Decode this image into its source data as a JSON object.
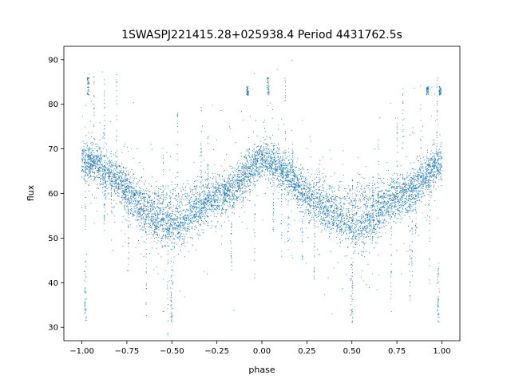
{
  "chart_data": {
    "type": "scatter",
    "title": "1SWASPJ221415.28+025938.4 Period 4431762.5s",
    "xlabel": "phase",
    "ylabel": "flux",
    "xlim": [
      -1.1,
      1.1
    ],
    "ylim": [
      27,
      93
    ],
    "xticks": [
      -1.0,
      -0.75,
      -0.5,
      -0.25,
      0.0,
      0.25,
      0.5,
      0.75,
      1.0
    ],
    "xtick_labels": [
      "−1.00",
      "−0.75",
      "−0.50",
      "−0.25",
      "0.00",
      "0.25",
      "0.50",
      "0.75",
      "1.00"
    ],
    "yticks": [
      30,
      40,
      50,
      60,
      70,
      80,
      90
    ],
    "ytick_labels": [
      "30",
      "40",
      "50",
      "60",
      "70",
      "80",
      "90"
    ],
    "grid": false,
    "marker_color": "#1f77b4",
    "profile": {
      "phase": [
        -1.0,
        -0.95,
        -0.9,
        -0.85,
        -0.8,
        -0.75,
        -0.7,
        -0.65,
        -0.6,
        -0.55,
        -0.5,
        -0.45,
        -0.4,
        -0.35,
        -0.3,
        -0.25,
        -0.2,
        -0.15,
        -0.1,
        -0.05,
        0.0,
        0.05,
        0.1,
        0.15,
        0.2,
        0.25,
        0.3,
        0.35,
        0.4,
        0.45,
        0.5,
        0.55,
        0.6,
        0.65,
        0.7,
        0.75,
        0.8,
        0.85,
        0.9,
        0.95,
        1.0
      ],
      "flux": [
        67.0,
        67.5,
        66.5,
        64.5,
        62.5,
        60.5,
        58.0,
        55.5,
        54.0,
        53.0,
        52.0,
        52.5,
        54.5,
        56.5,
        58.0,
        59.0,
        59.5,
        61.0,
        63.5,
        66.0,
        67.5,
        67.0,
        65.5,
        63.5,
        61.0,
        59.0,
        57.5,
        56.0,
        54.5,
        53.0,
        52.0,
        51.5,
        53.0,
        55.0,
        57.0,
        58.5,
        59.5,
        61.0,
        63.5,
        66.0,
        67.0
      ],
      "upper_branch_flux": [
        67.0,
        66.5,
        65.5,
        64.5,
        63.5,
        62.0,
        60.5,
        59.0,
        58.5,
        58.0,
        58.0,
        58.5,
        58.5,
        59.0,
        59.5,
        60.0,
        61.0,
        62.5,
        64.0,
        66.0,
        67.5,
        66.5,
        65.5,
        64.0,
        62.5,
        61.0,
        60.0,
        59.0,
        58.5,
        58.0,
        58.0,
        58.5,
        58.5,
        59.0,
        59.5,
        60.0,
        61.0,
        62.5,
        64.0,
        66.0,
        67.0
      ],
      "scatter_sd": 2.2
    },
    "outlier_clusters": [
      {
        "phase": -0.965,
        "flux": [
          82,
          86
        ]
      },
      {
        "phase": 0.035,
        "flux": [
          82,
          86
        ]
      },
      {
        "phase": -0.08,
        "flux": [
          82,
          84
        ]
      },
      {
        "phase": 0.92,
        "flux": [
          82,
          84
        ]
      },
      {
        "phase": 0.99,
        "flux": [
          82,
          84
        ]
      },
      {
        "phase": -0.5,
        "flux": [
          31,
          45
        ]
      },
      {
        "phase": 0.5,
        "flux": [
          31,
          45
        ]
      },
      {
        "phase": -0.98,
        "flux": [
          31,
          45
        ]
      },
      {
        "phase": 0.98,
        "flux": [
          31,
          45
        ]
      }
    ],
    "point_count": 9000
  }
}
